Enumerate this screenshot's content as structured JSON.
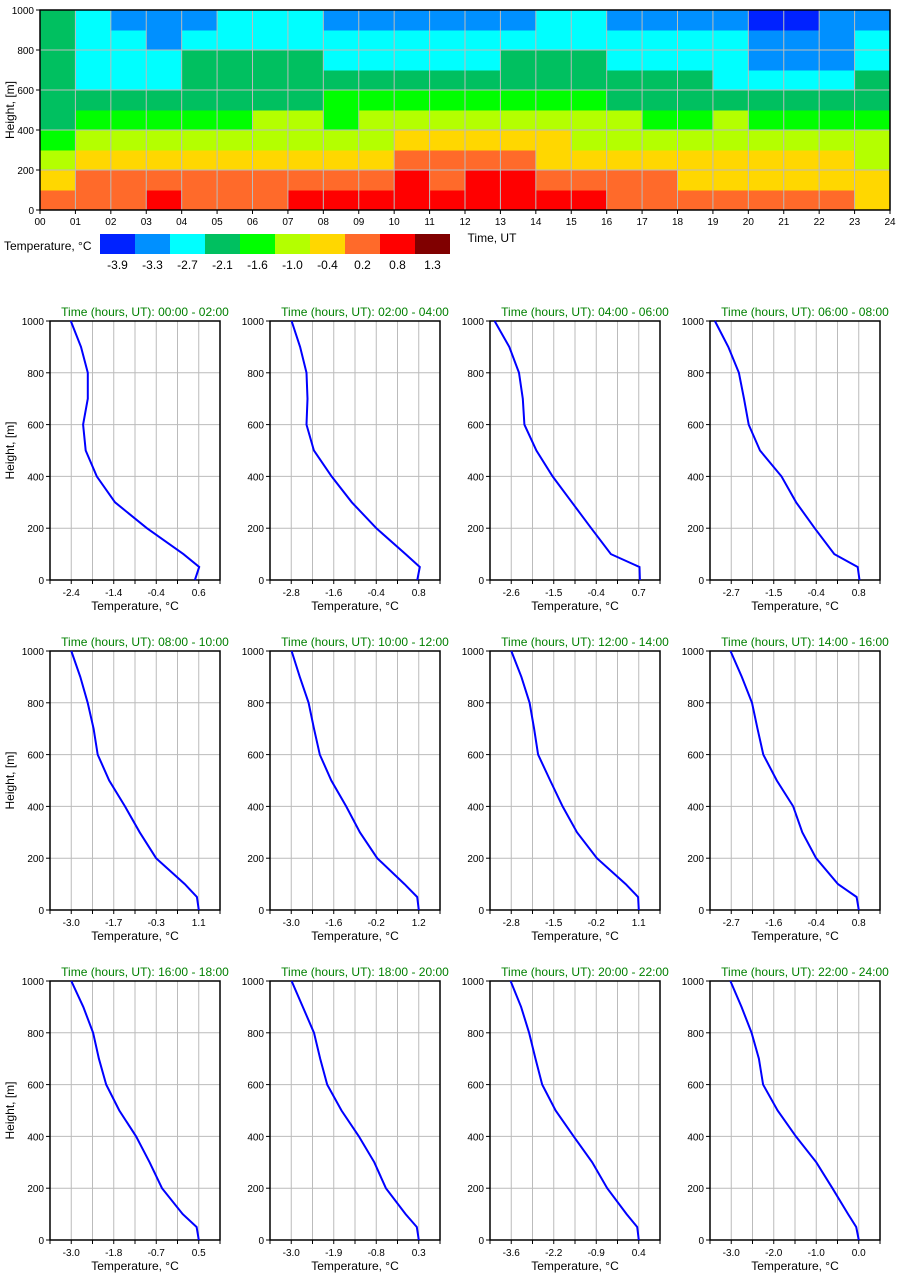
{
  "chart_data": [
    {
      "type": "heatmap",
      "title": "",
      "xlabel": "Time, UT",
      "ylabel": "Height, [m]",
      "xlim": [
        0,
        24
      ],
      "ylim": [
        0,
        1000
      ],
      "x_tick_labels": [
        "00",
        "01",
        "02",
        "03",
        "04",
        "05",
        "06",
        "07",
        "08",
        "09",
        "10",
        "11",
        "12",
        "13",
        "14",
        "15",
        "16",
        "17",
        "18",
        "19",
        "20",
        "21",
        "22",
        "23",
        "24"
      ],
      "y_ticks": [
        0,
        200,
        400,
        600,
        800,
        1000
      ],
      "grid": true,
      "colorbar": {
        "label": "Temperature, °C",
        "levels": [
          "-3.9",
          "-3.3",
          "-2.7",
          "-2.1",
          "-1.6",
          "-1.0",
          "-0.4",
          "0.2",
          "0.8",
          "1.3"
        ],
        "colors": [
          "#0022ff",
          "#0090ff",
          "#00ffff",
          "#00c060",
          "#00ff00",
          "#b4ff00",
          "#ffd700",
          "#ff6a2a",
          "#ff0000",
          "#800000"
        ]
      },
      "height_bins": [
        0,
        100,
        200,
        300,
        400,
        500,
        600,
        700,
        800,
        900
      ],
      "hourly_level_index": [
        [
          7,
          6,
          5,
          4,
          3,
          3,
          3,
          3,
          3,
          3
        ],
        [
          7,
          7,
          6,
          5,
          4,
          3,
          2,
          2,
          2,
          2
        ],
        [
          7,
          7,
          6,
          5,
          4,
          3,
          2,
          2,
          2,
          1
        ],
        [
          8,
          7,
          6,
          5,
          4,
          3,
          2,
          2,
          1,
          1
        ],
        [
          7,
          7,
          6,
          5,
          4,
          3,
          3,
          3,
          2,
          1
        ],
        [
          7,
          7,
          6,
          5,
          4,
          3,
          3,
          3,
          2,
          2
        ],
        [
          7,
          7,
          6,
          5,
          5,
          3,
          3,
          3,
          2,
          2
        ],
        [
          8,
          7,
          6,
          5,
          5,
          3,
          3,
          3,
          2,
          2
        ],
        [
          8,
          7,
          6,
          5,
          4,
          4,
          3,
          2,
          2,
          1
        ],
        [
          8,
          7,
          6,
          5,
          5,
          4,
          3,
          2,
          2,
          1
        ],
        [
          8,
          8,
          7,
          6,
          5,
          4,
          3,
          2,
          2,
          1
        ],
        [
          8,
          7,
          7,
          6,
          5,
          4,
          3,
          2,
          2,
          1
        ],
        [
          8,
          8,
          7,
          6,
          5,
          4,
          3,
          2,
          2,
          1
        ],
        [
          8,
          8,
          7,
          6,
          5,
          4,
          3,
          3,
          2,
          1
        ],
        [
          8,
          7,
          6,
          6,
          5,
          4,
          3,
          3,
          2,
          2
        ],
        [
          8,
          7,
          6,
          5,
          5,
          4,
          3,
          3,
          2,
          2
        ],
        [
          7,
          7,
          6,
          5,
          5,
          3,
          3,
          2,
          2,
          1
        ],
        [
          7,
          7,
          6,
          5,
          4,
          3,
          3,
          2,
          2,
          1
        ],
        [
          7,
          6,
          6,
          5,
          4,
          3,
          3,
          2,
          2,
          1
        ],
        [
          7,
          6,
          6,
          5,
          5,
          3,
          2,
          2,
          2,
          1
        ],
        [
          7,
          6,
          6,
          5,
          4,
          3,
          2,
          1,
          1,
          0
        ],
        [
          7,
          6,
          6,
          5,
          4,
          3,
          2,
          1,
          1,
          0
        ],
        [
          7,
          6,
          6,
          5,
          4,
          3,
          2,
          1,
          1,
          1
        ],
        [
          6,
          6,
          5,
          5,
          4,
          3,
          3,
          2,
          2,
          1
        ]
      ]
    },
    {
      "type": "line",
      "panel_title_prefix": "Time (hours, UT):",
      "xlabel": "Temperature, °C",
      "ylabel": "Height, [m]",
      "ylim": [
        0,
        1000
      ],
      "y_ticks": [
        0,
        200,
        400,
        600,
        800,
        1000
      ],
      "grid": true,
      "line_color": "#0000ff",
      "heights": [
        0,
        50,
        100,
        200,
        300,
        400,
        500,
        600,
        700,
        800,
        900,
        1000
      ],
      "panels": [
        {
          "period": "00:00 - 02:00",
          "x_ticks": [
            "-2.4",
            "-1.4",
            "-0.4",
            "0.6"
          ],
          "temps": [
            0.51,
            0.61,
            0.24,
            -0.62,
            -1.37,
            -1.8,
            -2.06,
            -2.12,
            -2.01,
            -2.01,
            -2.17,
            -2.41
          ]
        },
        {
          "period": "02:00 - 04:00",
          "x_ticks": [
            "-2.8",
            "-1.6",
            "-0.4",
            "0.8"
          ],
          "temps": [
            0.76,
            0.83,
            0.43,
            -0.4,
            -1.09,
            -1.66,
            -2.16,
            -2.37,
            -2.34,
            -2.37,
            -2.55,
            -2.79
          ]
        },
        {
          "period": "04:00 - 06:00",
          "x_ticks": [
            "-2.6",
            "-1.5",
            "-0.4",
            "0.7"
          ],
          "temps": [
            0.73,
            0.72,
            -0.02,
            -0.53,
            -1.03,
            -1.53,
            -1.95,
            -2.26,
            -2.3,
            -2.4,
            -2.65,
            -3.03
          ]
        },
        {
          "period": "06:00 - 08:00",
          "x_ticks": [
            "-2.7",
            "-1.5",
            "-0.4",
            "0.8"
          ],
          "temps": [
            0.82,
            0.77,
            0.13,
            -0.41,
            -0.92,
            -1.32,
            -1.91,
            -2.22,
            -2.35,
            -2.49,
            -2.78,
            -3.15
          ]
        },
        {
          "period": "08:00 - 10:00",
          "x_ticks": [
            "-3.0",
            "-1.7",
            "-0.3",
            "1.1"
          ],
          "temps": [
            1.1,
            1.04,
            0.65,
            -0.27,
            -0.8,
            -1.27,
            -1.78,
            -2.15,
            -2.28,
            -2.47,
            -2.71,
            -3.0
          ]
        },
        {
          "period": "10:00 - 12:00",
          "x_ticks": [
            "-3.0",
            "-1.6",
            "-0.2",
            "1.2"
          ],
          "temps": [
            1.2,
            1.15,
            0.73,
            -0.17,
            -0.74,
            -1.19,
            -1.68,
            -2.06,
            -2.25,
            -2.43,
            -2.72,
            -2.99
          ]
        },
        {
          "period": "12:00 - 14:00",
          "x_ticks": [
            "-2.8",
            "-1.5",
            "-0.2",
            "1.1"
          ],
          "temps": [
            1.1,
            1.08,
            0.7,
            -0.18,
            -0.79,
            -1.23,
            -1.61,
            -1.98,
            -2.1,
            -2.24,
            -2.49,
            -2.8
          ]
        },
        {
          "period": "14:00 - 16:00",
          "x_ticks": [
            "-2.7",
            "-1.6",
            "-0.4",
            "0.8"
          ],
          "temps": [
            0.8,
            0.74,
            0.23,
            -0.37,
            -0.75,
            -1.0,
            -1.45,
            -1.82,
            -1.98,
            -2.13,
            -2.41,
            -2.72
          ]
        },
        {
          "period": "16:00 - 18:00",
          "x_ticks": [
            "-3.0",
            "-1.8",
            "-0.7",
            "0.5"
          ],
          "temps": [
            0.5,
            0.44,
            0.06,
            -0.51,
            -0.85,
            -1.22,
            -1.68,
            -2.04,
            -2.24,
            -2.4,
            -2.67,
            -3.0
          ]
        },
        {
          "period": "18:00 - 20:00",
          "x_ticks": [
            "-3.0",
            "-1.9",
            "-0.8",
            "0.3"
          ],
          "temps": [
            0.3,
            0.25,
            -0.04,
            -0.55,
            -0.85,
            -1.25,
            -1.7,
            -2.07,
            -2.25,
            -2.41,
            -2.7,
            -2.99
          ]
        },
        {
          "period": "20:00 - 22:00",
          "x_ticks": [
            "-3.6",
            "-2.2",
            "-0.9",
            "0.4"
          ],
          "temps": [
            0.4,
            0.35,
            0.02,
            -0.59,
            -1.06,
            -1.64,
            -2.21,
            -2.63,
            -2.84,
            -3.04,
            -3.29,
            -3.62
          ]
        },
        {
          "period": "22:00 - 24:00",
          "x_ticks": [
            "-3.0",
            "-2.0",
            "-1.0",
            "0.0"
          ],
          "temps": [
            0.0,
            -0.06,
            -0.25,
            -0.62,
            -1.0,
            -1.48,
            -1.91,
            -2.25,
            -2.35,
            -2.52,
            -2.76,
            -3.02
          ]
        }
      ]
    }
  ]
}
